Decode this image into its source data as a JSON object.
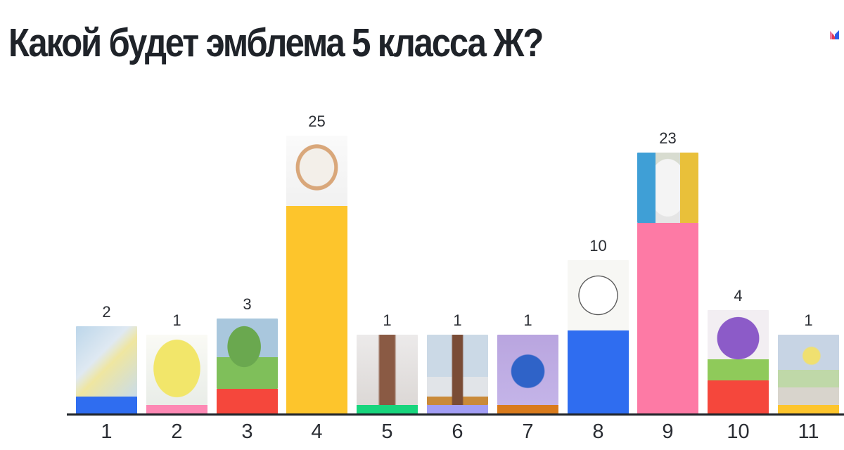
{
  "header": {
    "title": "Какой будет эмблема 5 класса Ж?",
    "logo_icon": "mentimeter-logo-icon"
  },
  "chart_data": {
    "type": "bar",
    "title": "Какой будет эмблема 5 класса Ж?",
    "categories": [
      "1",
      "2",
      "3",
      "4",
      "5",
      "6",
      "7",
      "8",
      "9",
      "10",
      "11"
    ],
    "values": [
      2,
      1,
      3,
      25,
      1,
      1,
      1,
      10,
      23,
      4,
      1
    ],
    "value_labels": [
      "2",
      "1",
      "3",
      "25",
      "1",
      "1",
      "1",
      "10",
      "23",
      "4",
      "1"
    ],
    "colors": [
      "#2f6df0",
      "#fd89b4",
      "#f5473c",
      "#fdc52c",
      "#18d57d",
      "#a29ef5",
      "#d97b1c",
      "#2f6df0",
      "#fd7aa5",
      "#f5473c",
      "#fdc52c"
    ],
    "images": [
      "leaf-drawing",
      "yellow-egg-drawing",
      "tree-on-hill-drawing",
      "5zh-best-class-emblem",
      "brown-tree-drawing",
      "spring-tree-drawing",
      "blue-globe-drawing",
      "5-class-circle-drawing",
      "hand-with-zh-drawing",
      "purple-tree-drawing",
      "sun-landscape-drawing"
    ],
    "xlabel": "",
    "ylabel": "",
    "grid": false,
    "legend": "none"
  }
}
